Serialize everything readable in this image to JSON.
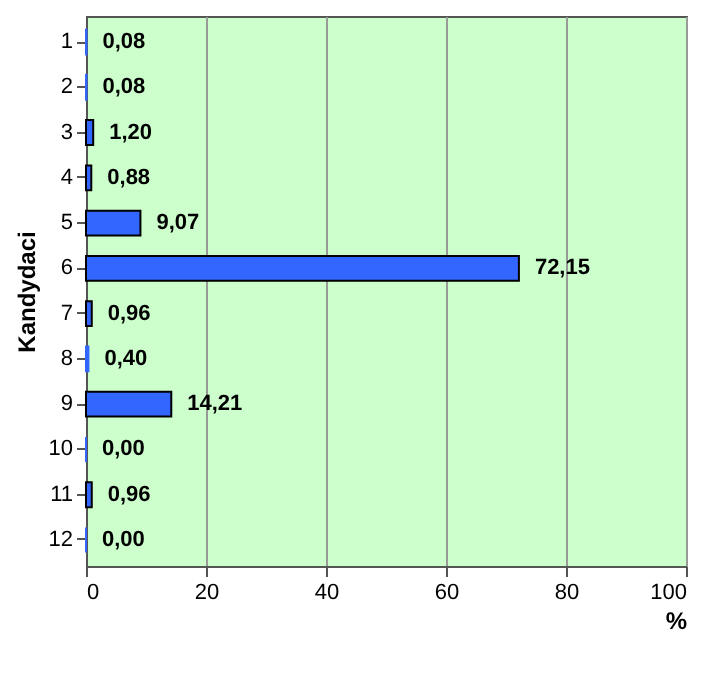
{
  "chart_data": {
    "type": "bar",
    "orientation": "horizontal",
    "xlabel": "%",
    "ylabel": "Kandydaci",
    "categories": [
      "1",
      "2",
      "3",
      "4",
      "5",
      "6",
      "7",
      "8",
      "9",
      "10",
      "11",
      "12"
    ],
    "values": [
      0.08,
      0.08,
      1.2,
      0.88,
      9.07,
      72.15,
      0.96,
      0.4,
      14.21,
      0.0,
      0.96,
      0.0
    ],
    "value_labels": [
      "0,08",
      "0,08",
      "1,20",
      "0,88",
      "9,07",
      "72,15",
      "0,96",
      "0,40",
      "14,21",
      "0,00",
      "0,96",
      "0,00"
    ],
    "color": "#3366ff",
    "xlim": [
      0,
      100
    ],
    "xticks": [
      0,
      20,
      40,
      60,
      80,
      100
    ],
    "grid": "x"
  }
}
